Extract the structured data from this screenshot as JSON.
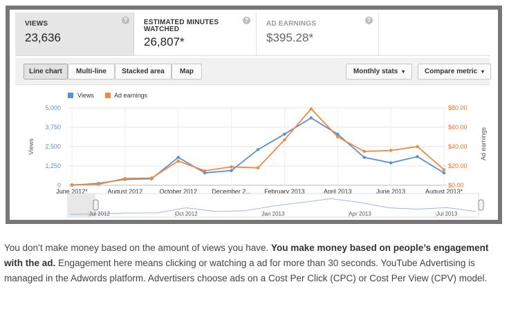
{
  "metrics": {
    "views": {
      "title": "VIEWS",
      "value": "23,636"
    },
    "minutes": {
      "title_line1": "ESTIMATED MINUTES",
      "title_line2": "WATCHED",
      "value": "26,807*"
    },
    "earnings": {
      "title": "AD EARNINGS",
      "value": "$395.28*"
    },
    "help_glyph": "?"
  },
  "toolbar": {
    "line_chart": "Line chart",
    "multi_line": "Multi-line",
    "stacked_area": "Stacked area",
    "map": "Map",
    "monthly_stats": "Monthly stats",
    "compare_metric": "Compare metric",
    "caret": "▾"
  },
  "colors": {
    "views": "#5b8fd4",
    "earnings": "#ed8a3f",
    "frame": "#777777"
  },
  "chart_data": {
    "type": "line",
    "legend": [
      "Views",
      "Ad earnings"
    ],
    "ylabel_left": "Views",
    "ylabel_right": "Ad earnings",
    "y_left_ticks": [
      "0",
      "1,250",
      "2,500",
      "3,750",
      "5,000"
    ],
    "y_left_range": [
      0,
      5000
    ],
    "y_right_ticks": [
      "$0.00",
      "$20.00",
      "$40.00",
      "$60.00",
      "$80.00"
    ],
    "y_right_range": [
      0,
      80
    ],
    "x_tick_labels": [
      "June 2012*",
      "August 2012",
      "October 2012",
      "December 2...",
      "February 2013",
      "April 2013",
      "June 2013",
      "August 2013*"
    ],
    "x": [
      "2012-06",
      "2012-07",
      "2012-08",
      "2012-09",
      "2012-10",
      "2012-11",
      "2012-12",
      "2013-01",
      "2013-02",
      "2013-03",
      "2013-04",
      "2013-05",
      "2013-06",
      "2013-07",
      "2013-08"
    ],
    "series": [
      {
        "name": "Views",
        "axis": "left",
        "values": [
          10,
          120,
          380,
          420,
          1800,
          800,
          950,
          2300,
          3300,
          4350,
          3300,
          1800,
          1450,
          1850,
          800
        ]
      },
      {
        "name": "Ad earnings",
        "axis": "right",
        "values": [
          0.5,
          1.0,
          7.0,
          7.5,
          25.0,
          15.0,
          19.0,
          18.0,
          47.0,
          79.0,
          50.0,
          35.0,
          36.0,
          40.0,
          16.0
        ]
      }
    ],
    "grid": true,
    "legend_position": "top-left"
  },
  "navigator": {
    "labels": [
      "Jul 2012",
      "Oct 2012",
      "Jan 2013",
      "Apr 2013",
      "Jul 2013"
    ]
  },
  "paragraph": {
    "p1": "You don’t make money based on the amount of views you have. ",
    "p1_bold": "You make money based on people’s engagement with the ad.",
    "p2": " Engagement here means clicking or watching a ad for more than 30 seconds. YouTube Advertising is managed in the Adwords platform. Advertisers choose ads on a Cost Per Click (CPC) or Cost Per View (CPV) model."
  }
}
